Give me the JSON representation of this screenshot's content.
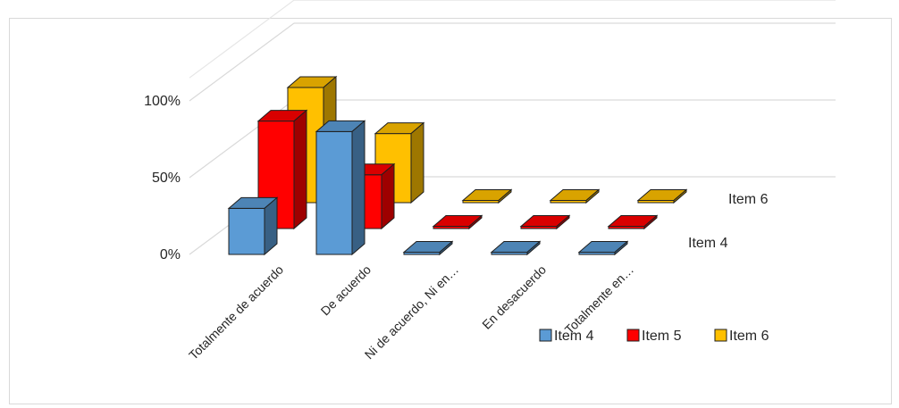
{
  "chart_data": {
    "type": "bar",
    "subtype": "3d-clustered-column",
    "title": "",
    "categories": [
      "Totalmente de acuerdo",
      "De acuerdo",
      "Ni de acuerdo,  Ni en…",
      "En desacuerdo",
      "Totalmente en…"
    ],
    "series": [
      {
        "name": "Item 4",
        "color": "#5b9bd5",
        "values": [
          30,
          80,
          0,
          0,
          0
        ]
      },
      {
        "name": "Item 5",
        "color": "#ff0000",
        "values": [
          70,
          35,
          0,
          0,
          0
        ]
      },
      {
        "name": "Item 6",
        "color": "#ffc000",
        "values": [
          75,
          45,
          0,
          0,
          0
        ]
      }
    ],
    "ylim": [
      0,
      100
    ],
    "yticks": [
      "0%",
      "50%",
      "100%"
    ],
    "depth_labels": [
      "Item 4",
      "Item 6"
    ],
    "grid": true,
    "legend": "bottom-right"
  }
}
